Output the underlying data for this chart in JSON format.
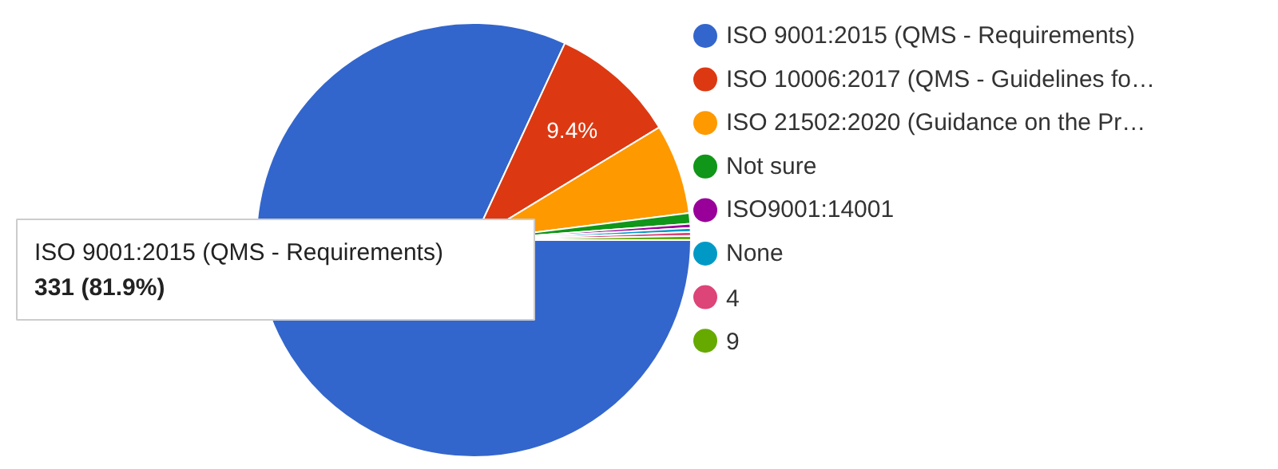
{
  "chart_data": {
    "type": "pie",
    "categories": [
      "ISO 9001:2015 (QMS - Requirements)",
      "ISO 10006:2017 (QMS - Guidelines fo…",
      "ISO 21502:2020 (Guidance on the Pr…",
      "Not sure",
      "ISO9001:14001",
      "None",
      "4",
      "9"
    ],
    "values": [
      81.9,
      9.4,
      6.7,
      0.8,
      0.3,
      0.3,
      0.3,
      0.3
    ],
    "colors": [
      "#3366cc",
      "#dc3912",
      "#ff9900",
      "#109618",
      "#990099",
      "#0099c6",
      "#dd4477",
      "#66aa00"
    ],
    "value_labels": [
      null,
      "9.4%",
      null,
      null,
      null,
      null,
      null,
      null
    ],
    "legend": "right",
    "annotations": [
      "ISO 9001:2015 (QMS - Requirements)",
      "331 (81.9%)"
    ]
  }
}
